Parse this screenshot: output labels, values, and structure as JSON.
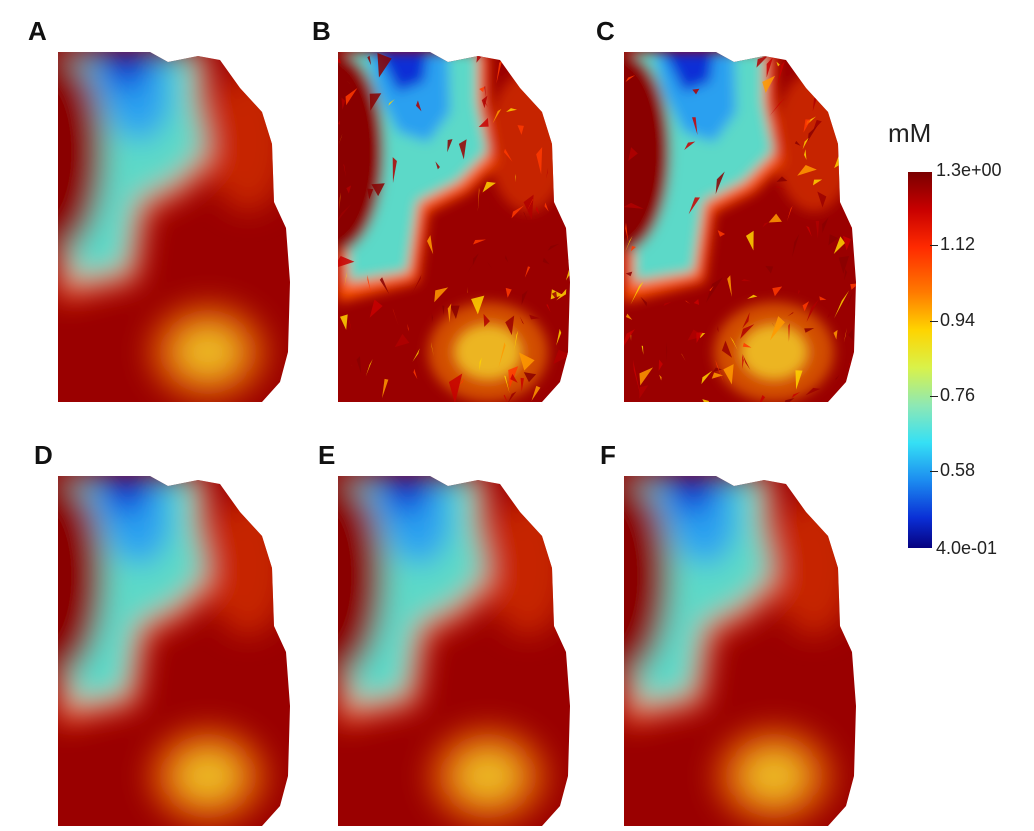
{
  "panels": [
    {
      "label": "A",
      "style": "smooth"
    },
    {
      "label": "B",
      "style": "noisy"
    },
    {
      "label": "C",
      "style": "noisy"
    },
    {
      "label": "D",
      "style": "smooth"
    },
    {
      "label": "E",
      "style": "smooth"
    },
    {
      "label": "F",
      "style": "smooth"
    }
  ],
  "colorbar": {
    "title": "mM",
    "max_label": "1.3e+00",
    "ticks": [
      "1.12",
      "0.94",
      "0.76",
      "0.58"
    ],
    "min_label": "4.0e-01",
    "colors": [
      "#7a0000",
      "#ff2a00",
      "#ffd400",
      "#35e0f5",
      "#06017f"
    ]
  }
}
